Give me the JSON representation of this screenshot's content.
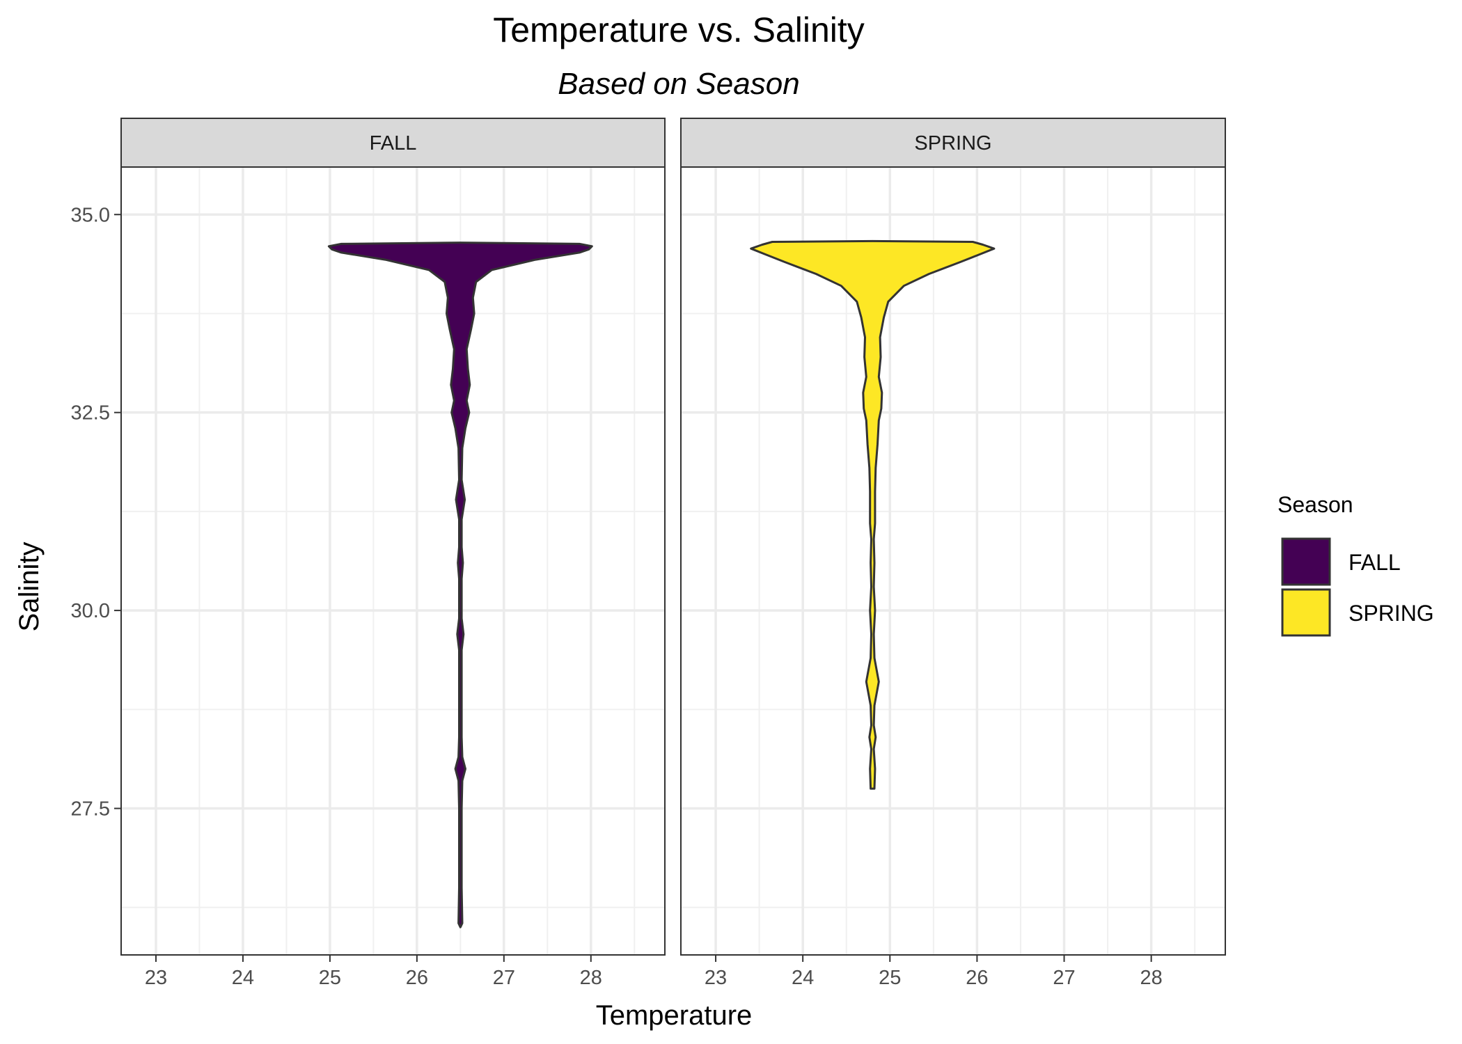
{
  "chart_data": {
    "type": "violin",
    "title": "Temperature vs. Salinity",
    "subtitle": "Based on Season",
    "xlabel": "Temperature",
    "ylabel": "Salinity",
    "xlim": [
      22.6,
      28.85
    ],
    "ylim": [
      25.65,
      35.6
    ],
    "x_ticks": [
      23,
      24,
      25,
      26,
      27,
      28
    ],
    "x_tick_labels": [
      "23",
      "24",
      "25",
      "26",
      "27",
      "28"
    ],
    "y_ticks": [
      27.5,
      30.0,
      32.5,
      35.0
    ],
    "y_tick_labels": [
      "27.5",
      "30.0",
      "32.5",
      "35.0"
    ],
    "grid": true,
    "legend": {
      "title": "Season",
      "placement": "right",
      "items": [
        {
          "label": "FALL",
          "color": "#440154"
        },
        {
          "label": "SPRING",
          "color": "#FDE725"
        }
      ]
    },
    "panels": [
      {
        "name": "FALL",
        "color": "#440154",
        "center_x": 26.5,
        "profile": [
          [
            26.0,
            0.0
          ],
          [
            26.05,
            0.03
          ],
          [
            26.5,
            0.02
          ],
          [
            27.0,
            0.02
          ],
          [
            27.5,
            0.02
          ],
          [
            27.85,
            0.03
          ],
          [
            28.0,
            0.08
          ],
          [
            28.15,
            0.03
          ],
          [
            28.4,
            0.02
          ],
          [
            29.0,
            0.02
          ],
          [
            29.5,
            0.02
          ],
          [
            29.7,
            0.05
          ],
          [
            29.9,
            0.02
          ],
          [
            30.4,
            0.02
          ],
          [
            30.6,
            0.04
          ],
          [
            30.8,
            0.02
          ],
          [
            31.15,
            0.02
          ],
          [
            31.4,
            0.07
          ],
          [
            31.65,
            0.02
          ],
          [
            32.05,
            0.03
          ],
          [
            32.3,
            0.08
          ],
          [
            32.5,
            0.14
          ],
          [
            32.65,
            0.1
          ],
          [
            32.85,
            0.15
          ],
          [
            33.05,
            0.12
          ],
          [
            33.3,
            0.1
          ],
          [
            33.55,
            0.17
          ],
          [
            33.75,
            0.22
          ],
          [
            33.95,
            0.2
          ],
          [
            34.15,
            0.25
          ],
          [
            34.3,
            0.5
          ],
          [
            34.43,
            1.2
          ],
          [
            34.52,
            1.9
          ],
          [
            34.56,
            2.05
          ],
          [
            34.6,
            2.1
          ],
          [
            34.63,
            1.9
          ],
          [
            34.645,
            0.0
          ]
        ]
      },
      {
        "name": "SPRING",
        "color": "#FDE725",
        "center_x": 24.8,
        "profile": [
          [
            27.75,
            0.03
          ],
          [
            28.0,
            0.04
          ],
          [
            28.25,
            0.02
          ],
          [
            28.4,
            0.05
          ],
          [
            28.55,
            0.02
          ],
          [
            28.8,
            0.03
          ],
          [
            29.1,
            0.1
          ],
          [
            29.4,
            0.03
          ],
          [
            29.7,
            0.02
          ],
          [
            30.0,
            0.04
          ],
          [
            30.3,
            0.02
          ],
          [
            30.6,
            0.03
          ],
          [
            30.9,
            0.02
          ],
          [
            31.1,
            0.04
          ],
          [
            31.5,
            0.04
          ],
          [
            31.8,
            0.05
          ],
          [
            32.1,
            0.08
          ],
          [
            32.4,
            0.1
          ],
          [
            32.55,
            0.14
          ],
          [
            32.75,
            0.15
          ],
          [
            32.95,
            0.1
          ],
          [
            33.2,
            0.13
          ],
          [
            33.45,
            0.12
          ],
          [
            33.7,
            0.18
          ],
          [
            33.9,
            0.25
          ],
          [
            34.1,
            0.5
          ],
          [
            34.25,
            0.9
          ],
          [
            34.4,
            1.4
          ],
          [
            34.5,
            1.72
          ],
          [
            34.57,
            1.94
          ],
          [
            34.62,
            1.76
          ],
          [
            34.655,
            1.6
          ],
          [
            34.665,
            0.0
          ]
        ]
      }
    ]
  }
}
